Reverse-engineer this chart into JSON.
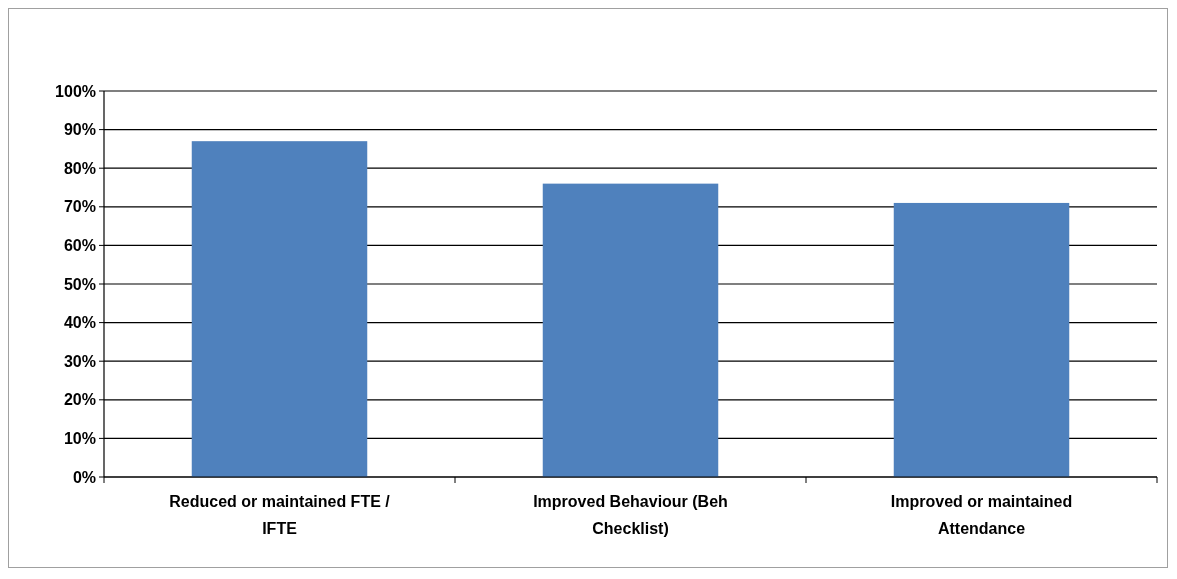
{
  "chart_data": {
    "type": "bar",
    "categories": [
      "Reduced or maintained FTE / IFTE",
      "Improved Behaviour (Beh Checklist)",
      "Improved or maintained Attendance"
    ],
    "values": [
      87,
      76,
      71
    ],
    "color": "#4f81bd",
    "ylim": [
      0,
      100
    ],
    "yticks": [
      {
        "value": 0,
        "label": "0%"
      },
      {
        "value": 10,
        "label": "10%"
      },
      {
        "value": 20,
        "label": "20%"
      },
      {
        "value": 30,
        "label": "30%"
      },
      {
        "value": 40,
        "label": "40%"
      },
      {
        "value": 50,
        "label": "50%"
      },
      {
        "value": 60,
        "label": "60%"
      },
      {
        "value": 70,
        "label": "70%"
      },
      {
        "value": 80,
        "label": "80%"
      },
      {
        "value": 90,
        "label": "90%"
      },
      {
        "value": 100,
        "label": "100%"
      }
    ],
    "grid": "y"
  }
}
